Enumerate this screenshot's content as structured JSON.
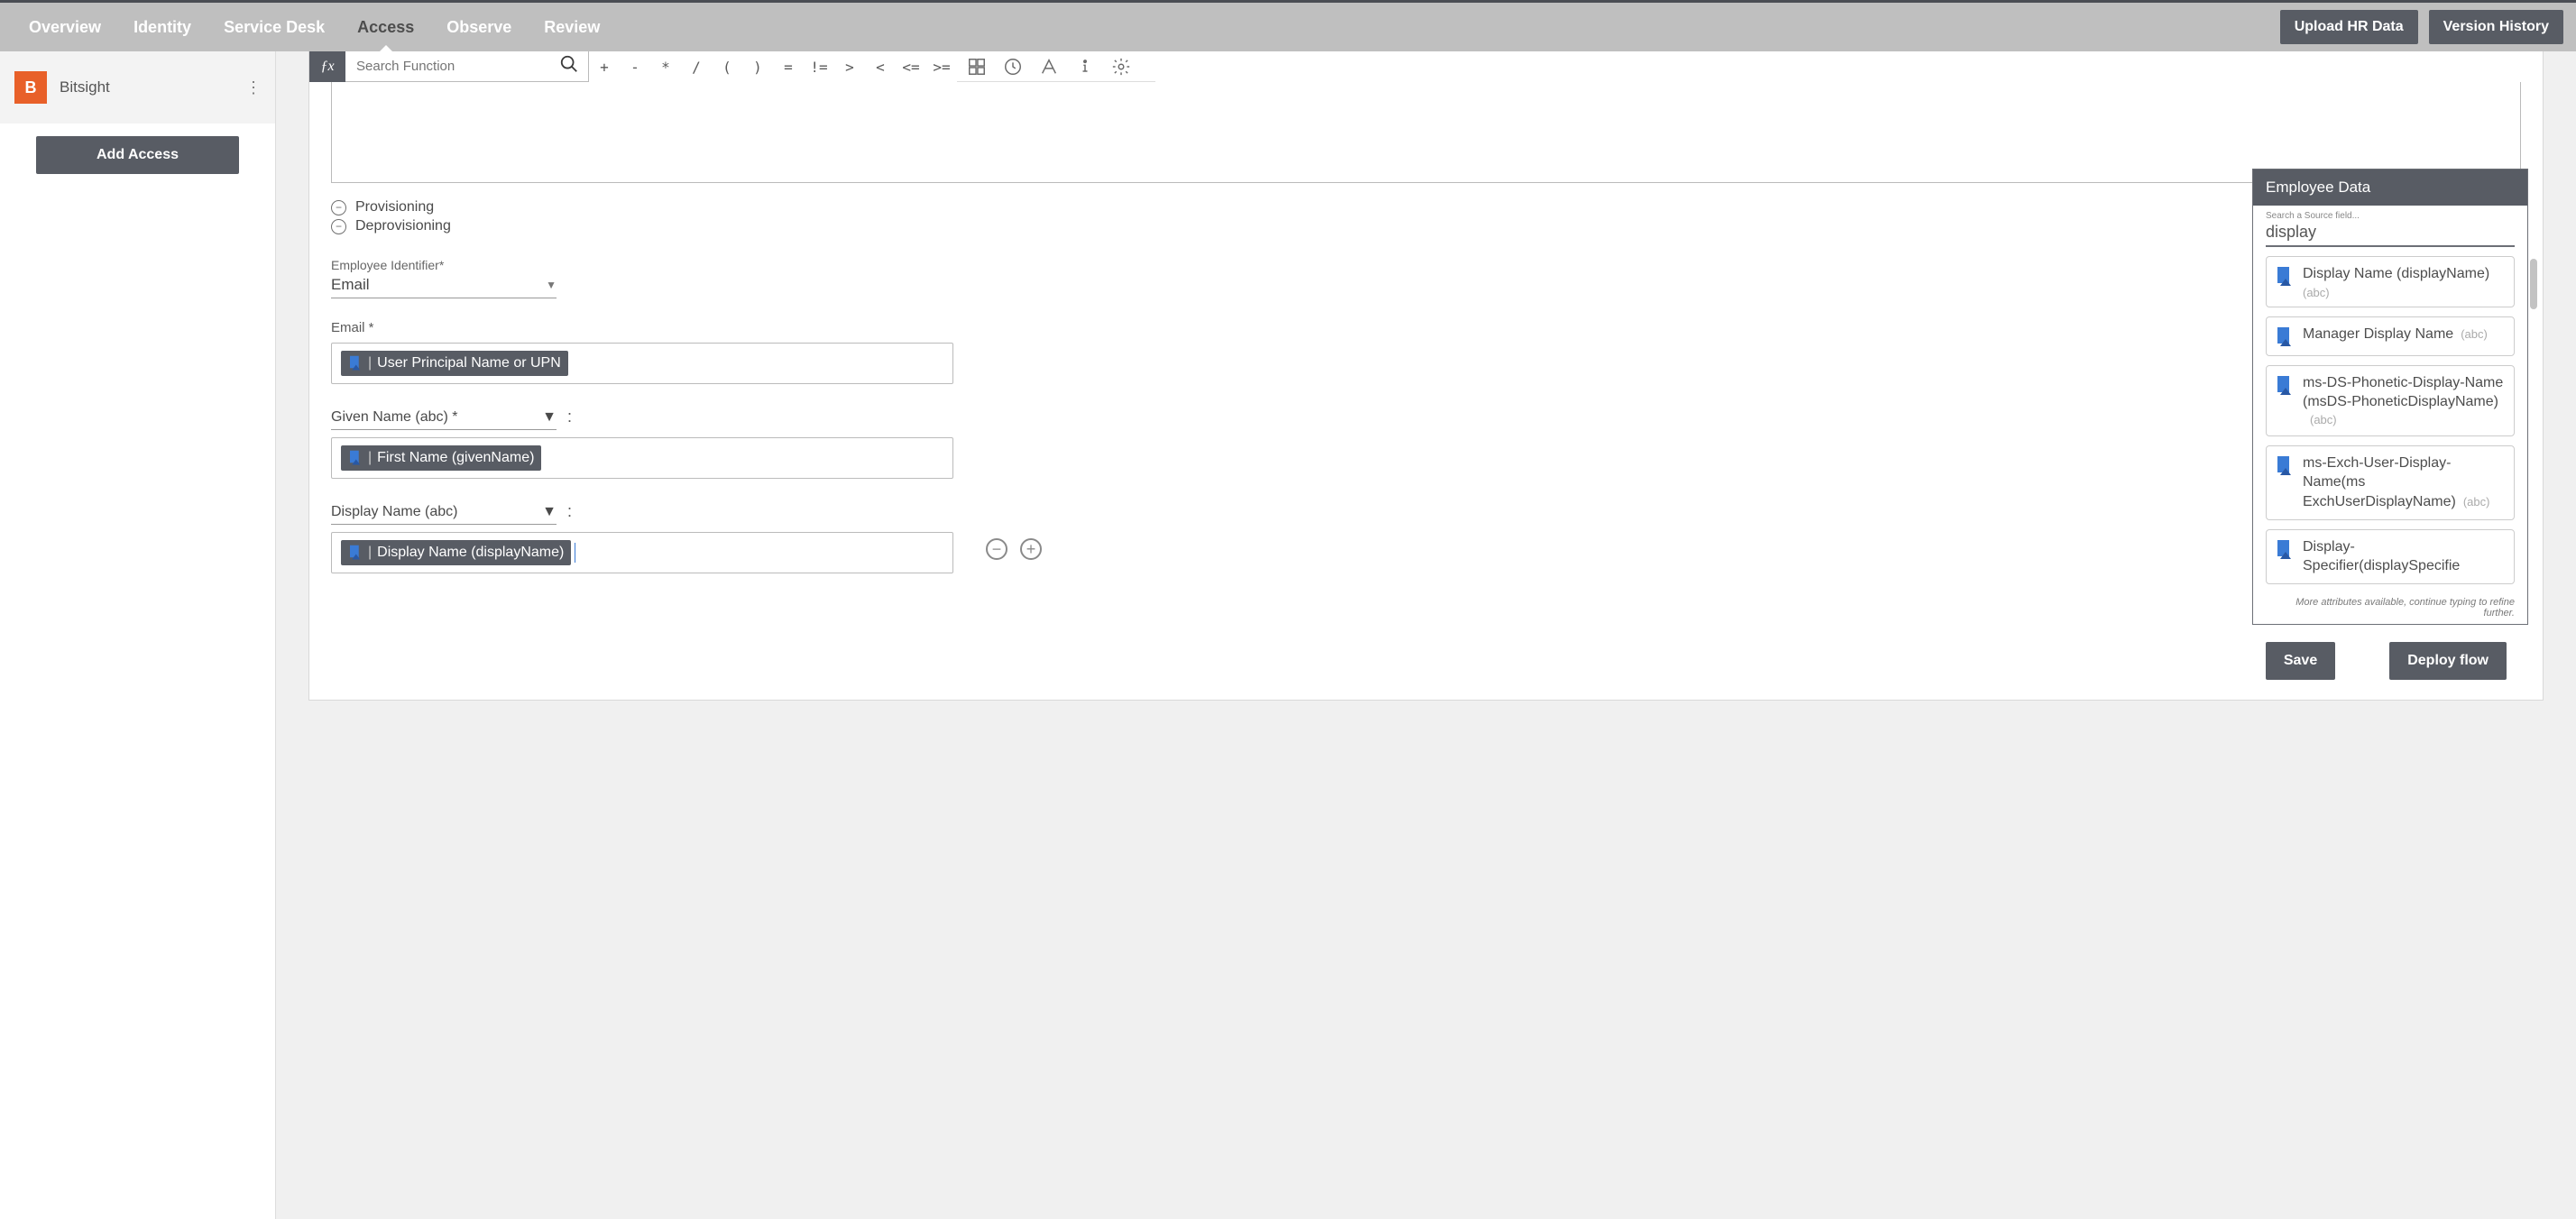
{
  "nav": {
    "items": [
      "Overview",
      "Identity",
      "Service Desk",
      "Access",
      "Observe",
      "Review"
    ],
    "active_index": 3,
    "buttons": {
      "upload": "Upload HR Data",
      "history": "Version History"
    }
  },
  "sidebar": {
    "app_name": "Bitsight",
    "logo_letter": "B",
    "add_button": "Add Access"
  },
  "fx": {
    "search_placeholder": "Search Function",
    "operators": [
      "+",
      "-",
      "*",
      "/",
      "(",
      ")",
      "=",
      "!=",
      ">",
      "<",
      "<=",
      ">="
    ]
  },
  "expand_rows": [
    "Provisioning",
    "Deprovisioning"
  ],
  "identifier": {
    "label": "Employee Identifier*",
    "value": "Email"
  },
  "fields": [
    {
      "label": "Email *",
      "chip": "User Principal Name or UPN"
    },
    {
      "label": "Given Name (abc) *",
      "chip": "First Name (givenName)",
      "has_select": true
    },
    {
      "label": "Display Name (abc)",
      "chip": "Display Name (displayName)",
      "has_select": true,
      "has_cursor": true
    }
  ],
  "emp_panel": {
    "title": "Employee Data",
    "search_label": "Search a Source field...",
    "search_value": "display",
    "items": [
      {
        "title": "Display Name (displayName)",
        "type": "(abc)",
        "type_inline": false
      },
      {
        "title": "Manager Display Name",
        "type": "(abc)",
        "type_inline": true
      },
      {
        "title": "ms-DS-Phonetic-Display-Name (msDS-PhoneticDisplayName)",
        "type": "(abc)",
        "type_inline": true
      },
      {
        "title": "ms-Exch-User-Display-Name(ms ExchUserDisplayName)",
        "type": "(abc)",
        "type_inline": true
      },
      {
        "title": "Display-Specifier(displaySpecifie",
        "type": "",
        "type_inline": true
      }
    ],
    "hint": "More attributes available, continue typing to refine further."
  },
  "footer": {
    "save": "Save",
    "deploy": "Deploy flow"
  }
}
